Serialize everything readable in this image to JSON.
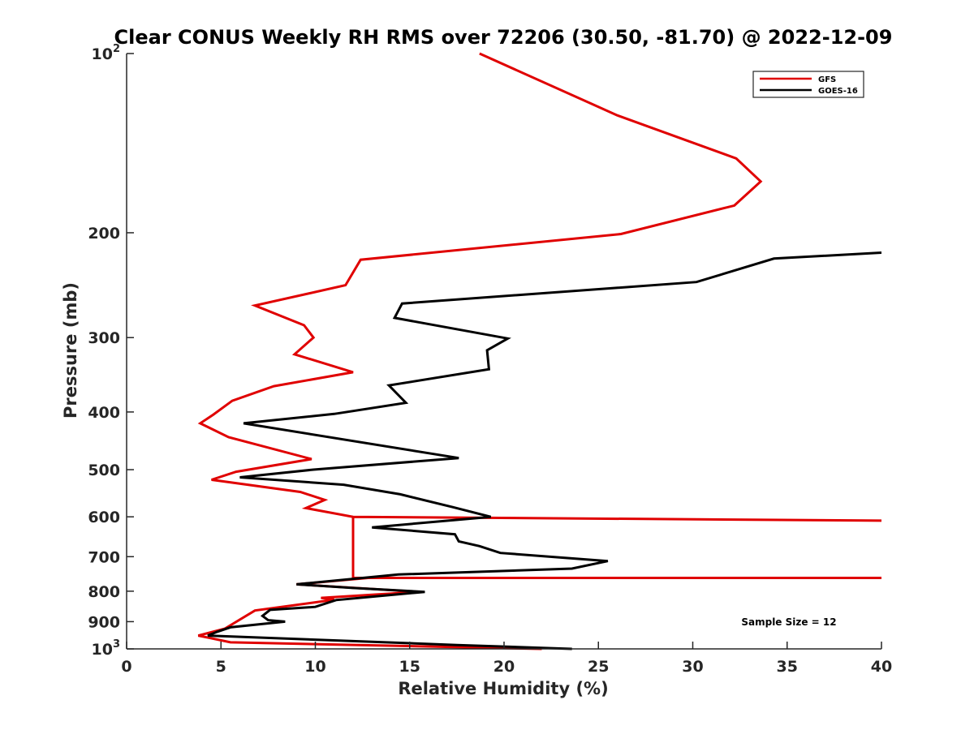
{
  "chart_data": {
    "type": "line",
    "title": "Clear CONUS Weekly RH RMS over 72206 (30.50, -81.70) @ 2022-12-09",
    "xlabel": "Relative Humidity (%)",
    "ylabel": "Pressure (mb)",
    "xlim": [
      0,
      40
    ],
    "ylim": [
      100,
      1000
    ],
    "y_scale": "log",
    "y_reversed": true,
    "grid": false,
    "legend_position": "top-right",
    "x_ticks": [
      0,
      5,
      10,
      15,
      20,
      25,
      30,
      35,
      40
    ],
    "x_tick_labels": [
      "0",
      "5",
      "10",
      "15",
      "20",
      "25",
      "30",
      "35",
      "40"
    ],
    "y_ticks": [
      {
        "value": 100,
        "label": "10",
        "sup": "2"
      },
      {
        "value": 200,
        "label": "200",
        "sup": ""
      },
      {
        "value": 300,
        "label": "300",
        "sup": ""
      },
      {
        "value": 400,
        "label": "400",
        "sup": ""
      },
      {
        "value": 500,
        "label": "500",
        "sup": ""
      },
      {
        "value": 600,
        "label": "600",
        "sup": ""
      },
      {
        "value": 700,
        "label": "700",
        "sup": ""
      },
      {
        "value": 800,
        "label": "800",
        "sup": ""
      },
      {
        "value": 900,
        "label": "900",
        "sup": ""
      },
      {
        "value": 1000,
        "label": "10",
        "sup": "3"
      }
    ],
    "annotation": "Sample Size = 12",
    "series": [
      {
        "name": "GFS",
        "color": "#e00000",
        "points": [
          [
            22.0,
            1000
          ],
          [
            5.5,
            975
          ],
          [
            3.8,
            950
          ],
          [
            5.2,
            925
          ],
          [
            6.8,
            862
          ],
          [
            11.0,
            827
          ],
          [
            10.3,
            821
          ],
          [
            15.5,
            802
          ],
          [
            9.0,
            779
          ],
          [
            12.8,
            760
          ],
          [
            40.0,
            760
          ],
          [
            12.0,
            760
          ],
          [
            12.0,
            600
          ],
          [
            40.0,
            609
          ],
          [
            12.0,
            600
          ],
          [
            9.5,
            580
          ],
          [
            10.5,
            562
          ],
          [
            9.2,
            545
          ],
          [
            4.5,
            520
          ],
          [
            5.8,
            504
          ],
          [
            9.8,
            480
          ],
          [
            5.4,
            441
          ],
          [
            3.9,
            418
          ],
          [
            4.6,
            404
          ],
          [
            5.6,
            383
          ],
          [
            7.8,
            362
          ],
          [
            12.0,
            343
          ],
          [
            8.9,
            320
          ],
          [
            9.9,
            300
          ],
          [
            9.4,
            286
          ],
          [
            6.8,
            265
          ],
          [
            11.6,
            245
          ],
          [
            12.4,
            222
          ],
          [
            26.2,
            201
          ],
          [
            32.2,
            180
          ],
          [
            33.6,
            164
          ],
          [
            32.3,
            150
          ],
          [
            26.0,
            127
          ],
          [
            18.7,
            100
          ]
        ]
      },
      {
        "name": "GOES-16",
        "color": "#000000",
        "points": [
          [
            23.6,
            1000
          ],
          [
            17.5,
            985
          ],
          [
            4.3,
            950
          ],
          [
            4.8,
            936
          ],
          [
            5.5,
            920
          ],
          [
            8.4,
            900
          ],
          [
            7.5,
            895
          ],
          [
            7.2,
            880
          ],
          [
            7.6,
            860
          ],
          [
            10.0,
            850
          ],
          [
            11.1,
            828
          ],
          [
            15.8,
            802
          ],
          [
            12.0,
            790
          ],
          [
            9.0,
            779
          ],
          [
            14.4,
            750
          ],
          [
            23.6,
            733
          ],
          [
            25.5,
            712
          ],
          [
            19.8,
            690
          ],
          [
            18.7,
            672
          ],
          [
            17.6,
            660
          ],
          [
            17.4,
            642
          ],
          [
            13.0,
            625
          ],
          [
            19.3,
            600
          ],
          [
            17.3,
            578
          ],
          [
            14.5,
            550
          ],
          [
            11.5,
            530
          ],
          [
            6.0,
            515
          ],
          [
            9.9,
            500
          ],
          [
            17.6,
            478
          ],
          [
            6.2,
            418
          ],
          [
            11.0,
            403
          ],
          [
            14.8,
            386
          ],
          [
            13.9,
            361
          ],
          [
            19.2,
            339
          ],
          [
            19.1,
            315
          ],
          [
            20.2,
            301
          ],
          [
            14.2,
            278
          ],
          [
            14.6,
            263
          ],
          [
            30.2,
            242
          ],
          [
            34.3,
            221
          ],
          [
            40.0,
            216
          ]
        ]
      }
    ]
  }
}
